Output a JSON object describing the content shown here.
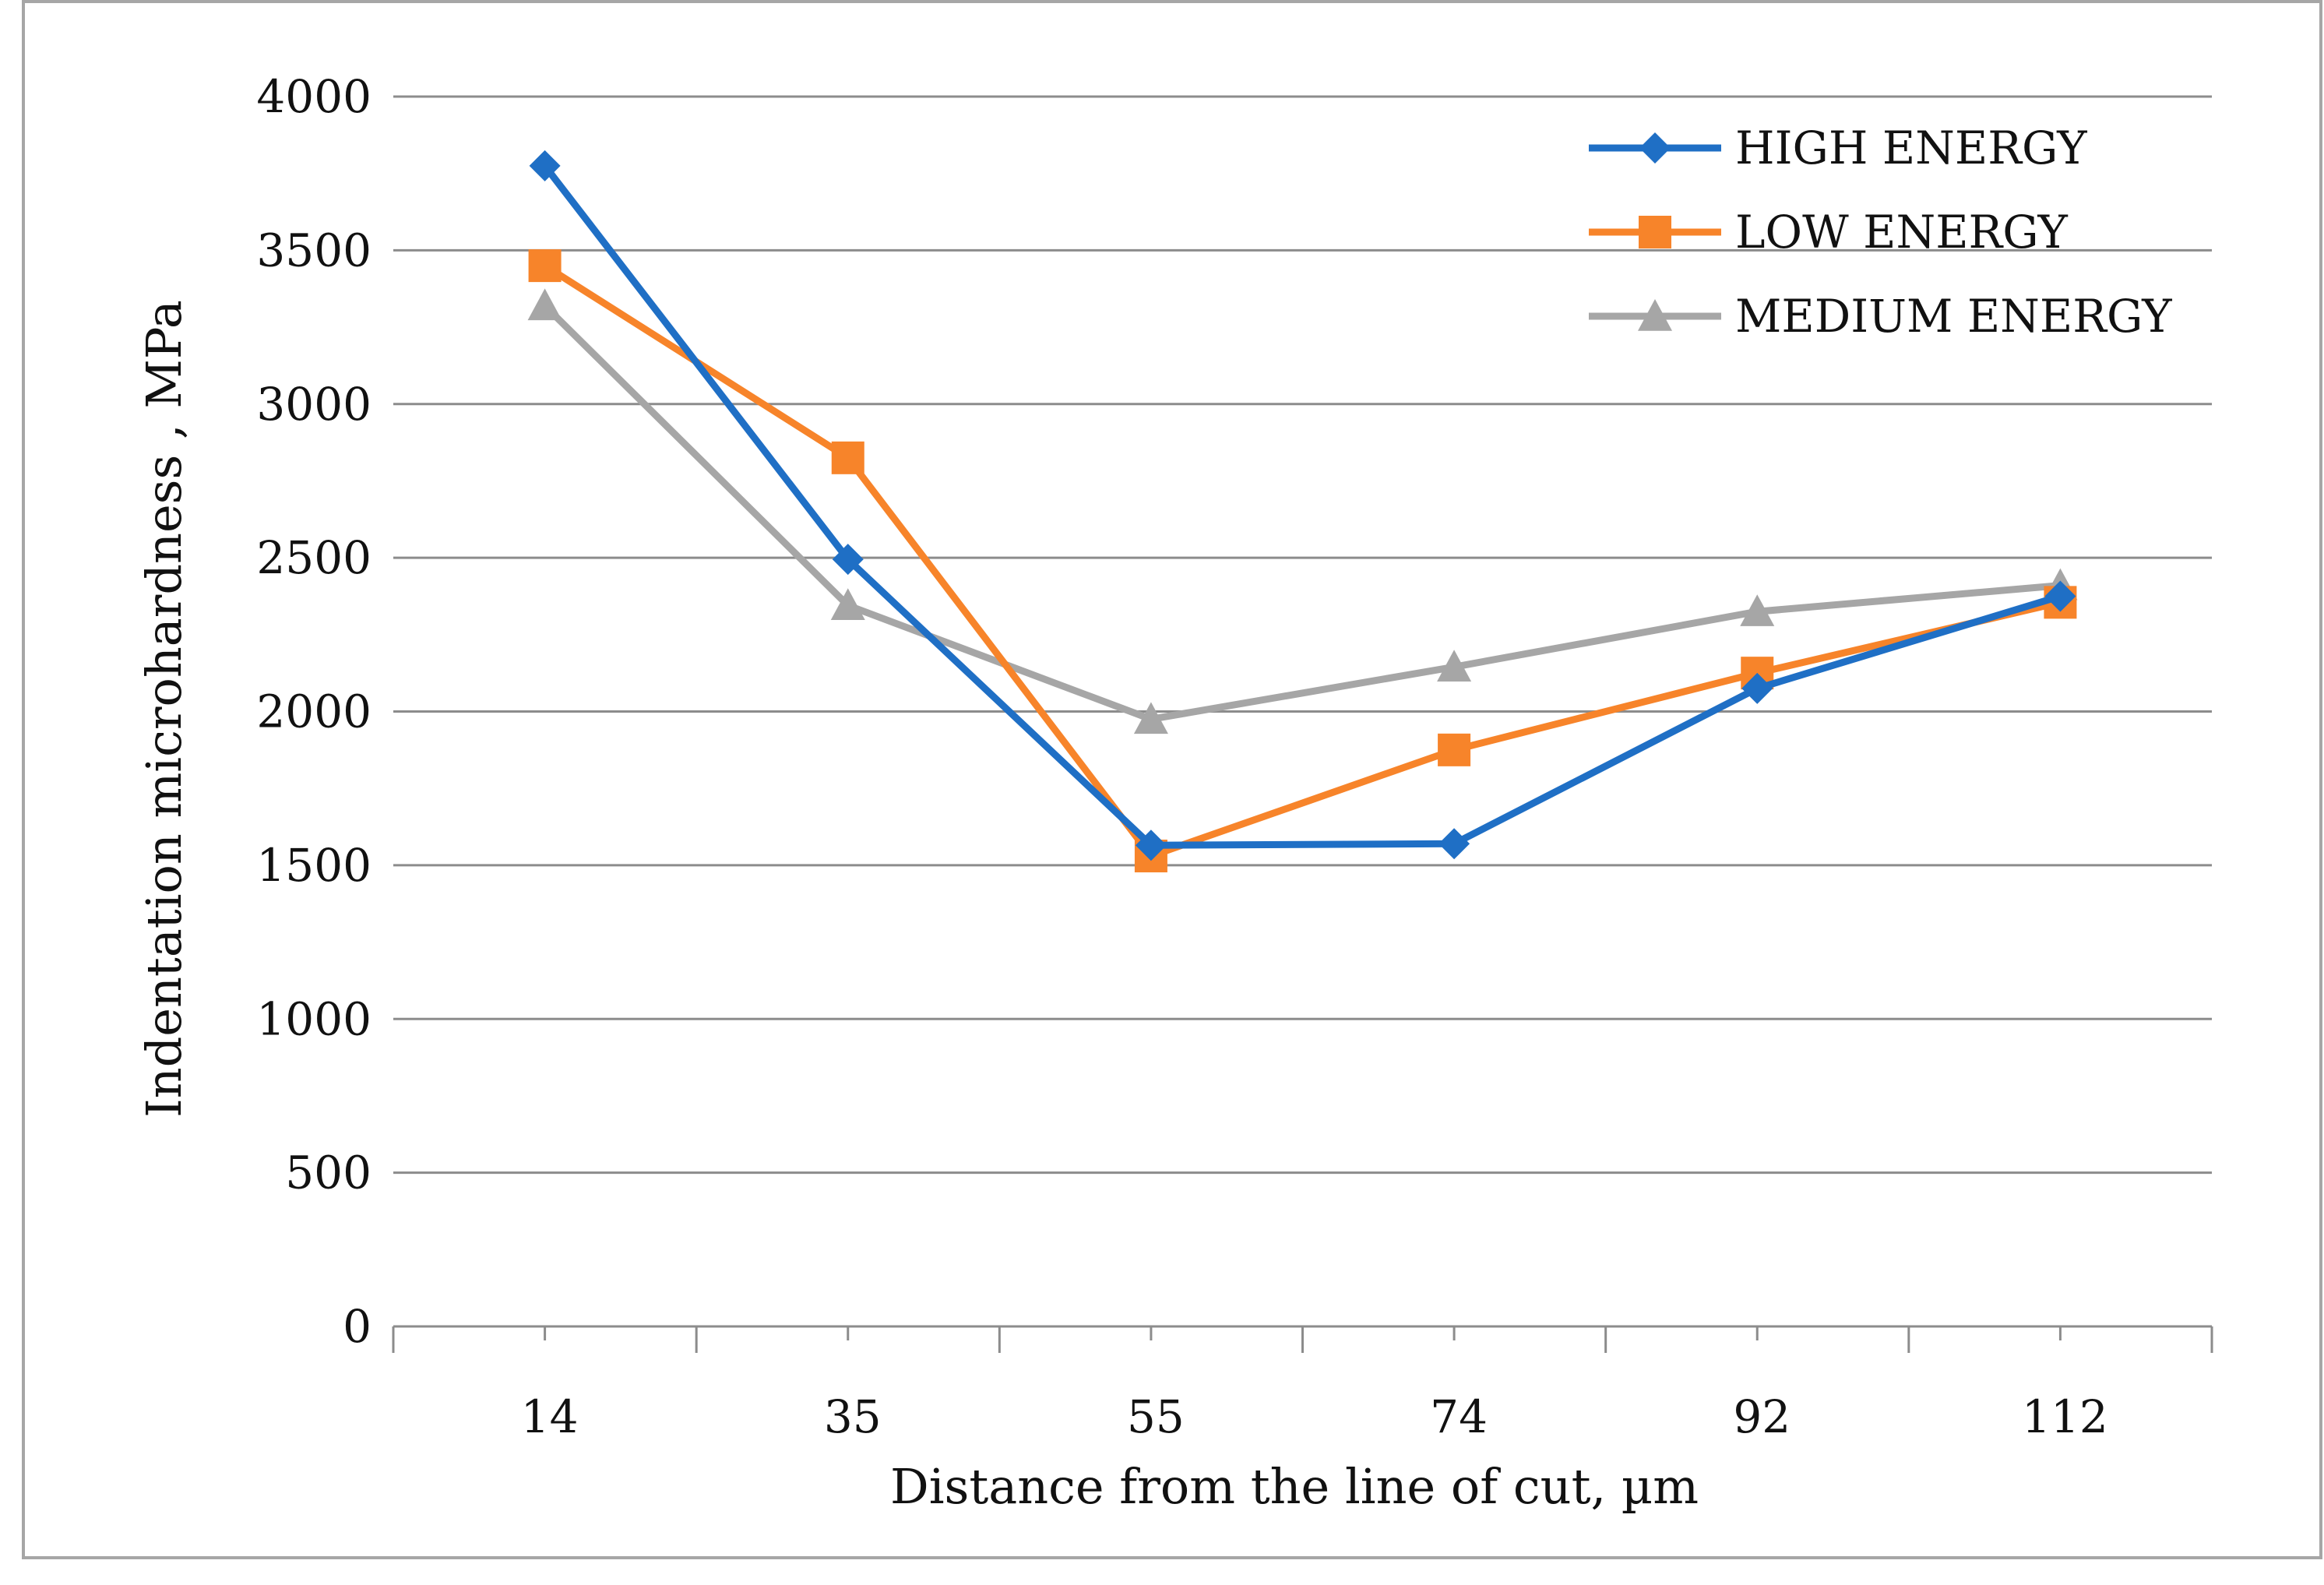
{
  "chart_data": {
    "type": "line",
    "categories": [
      "14",
      "35",
      "55",
      "74",
      "92",
      "112"
    ],
    "series": [
      {
        "name": "HIGH ENERGY",
        "color": "#1f6fc5",
        "marker": "diamond",
        "values": [
          3775,
          2495,
          1565,
          1570,
          2075,
          2375
        ]
      },
      {
        "name": "LOW ENERGY",
        "color": "#f7842a",
        "marker": "square",
        "values": [
          3450,
          2825,
          1530,
          1875,
          2125,
          2355
        ]
      },
      {
        "name": "MEDIUM ENERGY",
        "color": "#a6a6a6",
        "marker": "triangle",
        "values": [
          3320,
          2345,
          1975,
          2145,
          2325,
          2410
        ]
      }
    ],
    "title": "",
    "xlabel": "Distance from the line of cut, µm",
    "ylabel": "Indentation microhardness , MPa",
    "ylim": [
      0,
      4000
    ],
    "yticks": [
      "0",
      "500",
      "1000",
      "1500",
      "2000",
      "2500",
      "3000",
      "3500",
      "4000"
    ],
    "grid": true,
    "legend": "top-right"
  }
}
